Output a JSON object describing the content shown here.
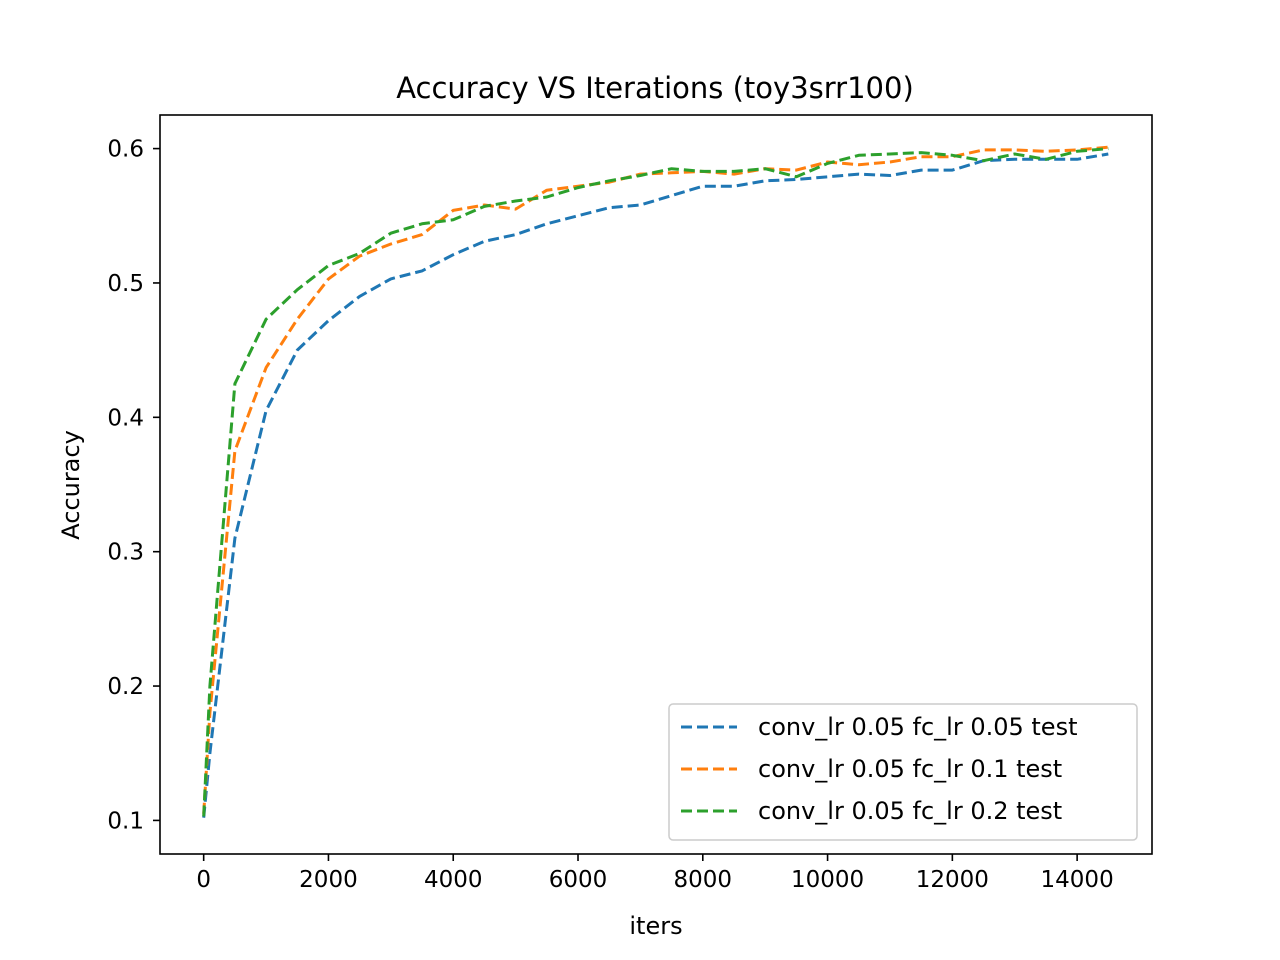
{
  "chart_data": {
    "type": "line",
    "title": "Accuracy VS Iterations (toy3srr100)",
    "xlabel": "iters",
    "ylabel": "Accuracy",
    "xlim": [
      -700,
      15200
    ],
    "ylim": [
      0.075,
      0.625
    ],
    "xticks": [
      0,
      2000,
      4000,
      6000,
      8000,
      10000,
      12000,
      14000
    ],
    "xtick_labels": [
      "0",
      "2000",
      "4000",
      "6000",
      "8000",
      "10000",
      "12000",
      "14000"
    ],
    "yticks": [
      0.1,
      0.2,
      0.3,
      0.4,
      0.5,
      0.6
    ],
    "ytick_labels": [
      "0.1",
      "0.2",
      "0.3",
      "0.4",
      "0.5",
      "0.6"
    ],
    "grid": false,
    "legend_position": "lower-right",
    "line_style": "dashed",
    "x": [
      0,
      100,
      500,
      1000,
      1500,
      2000,
      2500,
      3000,
      3500,
      4000,
      4500,
      5000,
      5500,
      6000,
      6500,
      7000,
      7500,
      8000,
      8500,
      9000,
      9500,
      10000,
      10500,
      11000,
      11500,
      12000,
      12500,
      13000,
      13500,
      14000,
      14500
    ],
    "series": [
      {
        "name": "conv_lr 0.05 fc_lr 0.05 test",
        "color": "#1f77b4",
        "values": [
          0.102,
          0.15,
          0.31,
          0.405,
          0.45,
          0.472,
          0.49,
          0.503,
          0.509,
          0.521,
          0.531,
          0.536,
          0.544,
          0.55,
          0.556,
          0.558,
          0.565,
          0.572,
          0.572,
          0.576,
          0.577,
          0.579,
          0.581,
          0.58,
          0.584,
          0.584,
          0.591,
          0.592,
          0.592,
          0.592,
          0.596
        ]
      },
      {
        "name": "conv_lr 0.05 fc_lr 0.1 test",
        "color": "#ff7f0e",
        "values": [
          0.105,
          0.18,
          0.375,
          0.437,
          0.473,
          0.503,
          0.52,
          0.529,
          0.536,
          0.554,
          0.558,
          0.555,
          0.569,
          0.572,
          0.575,
          0.581,
          0.582,
          0.583,
          0.581,
          0.585,
          0.584,
          0.59,
          0.588,
          0.59,
          0.594,
          0.594,
          0.599,
          0.599,
          0.598,
          0.599,
          0.601
        ]
      },
      {
        "name": "conv_lr 0.05 fc_lr 0.2 test",
        "color": "#2ca02c",
        "values": [
          0.103,
          0.2,
          0.425,
          0.473,
          0.495,
          0.513,
          0.522,
          0.537,
          0.544,
          0.547,
          0.557,
          0.561,
          0.564,
          0.571,
          0.576,
          0.58,
          0.585,
          0.583,
          0.583,
          0.585,
          0.579,
          0.589,
          0.595,
          0.596,
          0.597,
          0.595,
          0.591,
          0.596,
          0.592,
          0.598,
          0.6
        ]
      }
    ]
  }
}
